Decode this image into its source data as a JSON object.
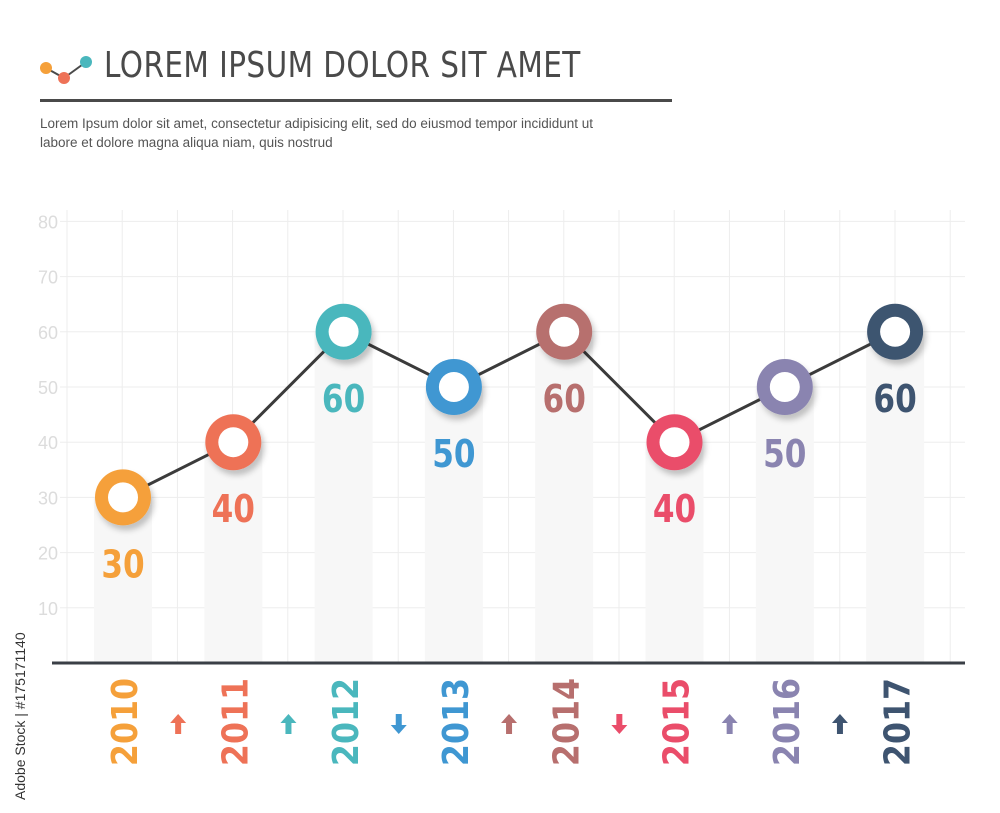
{
  "header": {
    "title": "LOREM IPSUM DOLOR SIT AMET",
    "subtitle": "Lorem Ipsum dolor sit amet, consectetur adipisicing elit, sed do eiusmod tempor incididunt ut\nlabore et dolore magna aliqua niam, quis nostrud"
  },
  "watermark": "Adobe Stock | #175171140",
  "colors": {
    "axis": "#3a3f46",
    "grid": "#ededed",
    "tick_label": "#dcdcdc",
    "line": "#3b3b3b",
    "column": "#f7f7f7",
    "series": [
      "#f5a03a",
      "#ee7257",
      "#4ab7bd",
      "#3f97d2",
      "#b76f6e",
      "#ea4d6a",
      "#8a84b0",
      "#3e5470"
    ]
  },
  "icons": {
    "header": "line-chart-icon",
    "trend_up": "arrow-up-icon",
    "trend_down": "arrow-down-icon"
  },
  "chart_data": {
    "type": "line",
    "x": [
      "2010",
      "2011",
      "2012",
      "2013",
      "2014",
      "2015",
      "2016",
      "2017"
    ],
    "values": [
      30,
      40,
      60,
      50,
      60,
      40,
      50,
      60
    ],
    "y_ticks": [
      10,
      20,
      30,
      40,
      50,
      60,
      70,
      80
    ],
    "ylim": [
      0,
      80
    ],
    "grid": true,
    "trend_arrows": [
      "up",
      "up",
      "down",
      "up",
      "down",
      "up",
      "up"
    ]
  }
}
